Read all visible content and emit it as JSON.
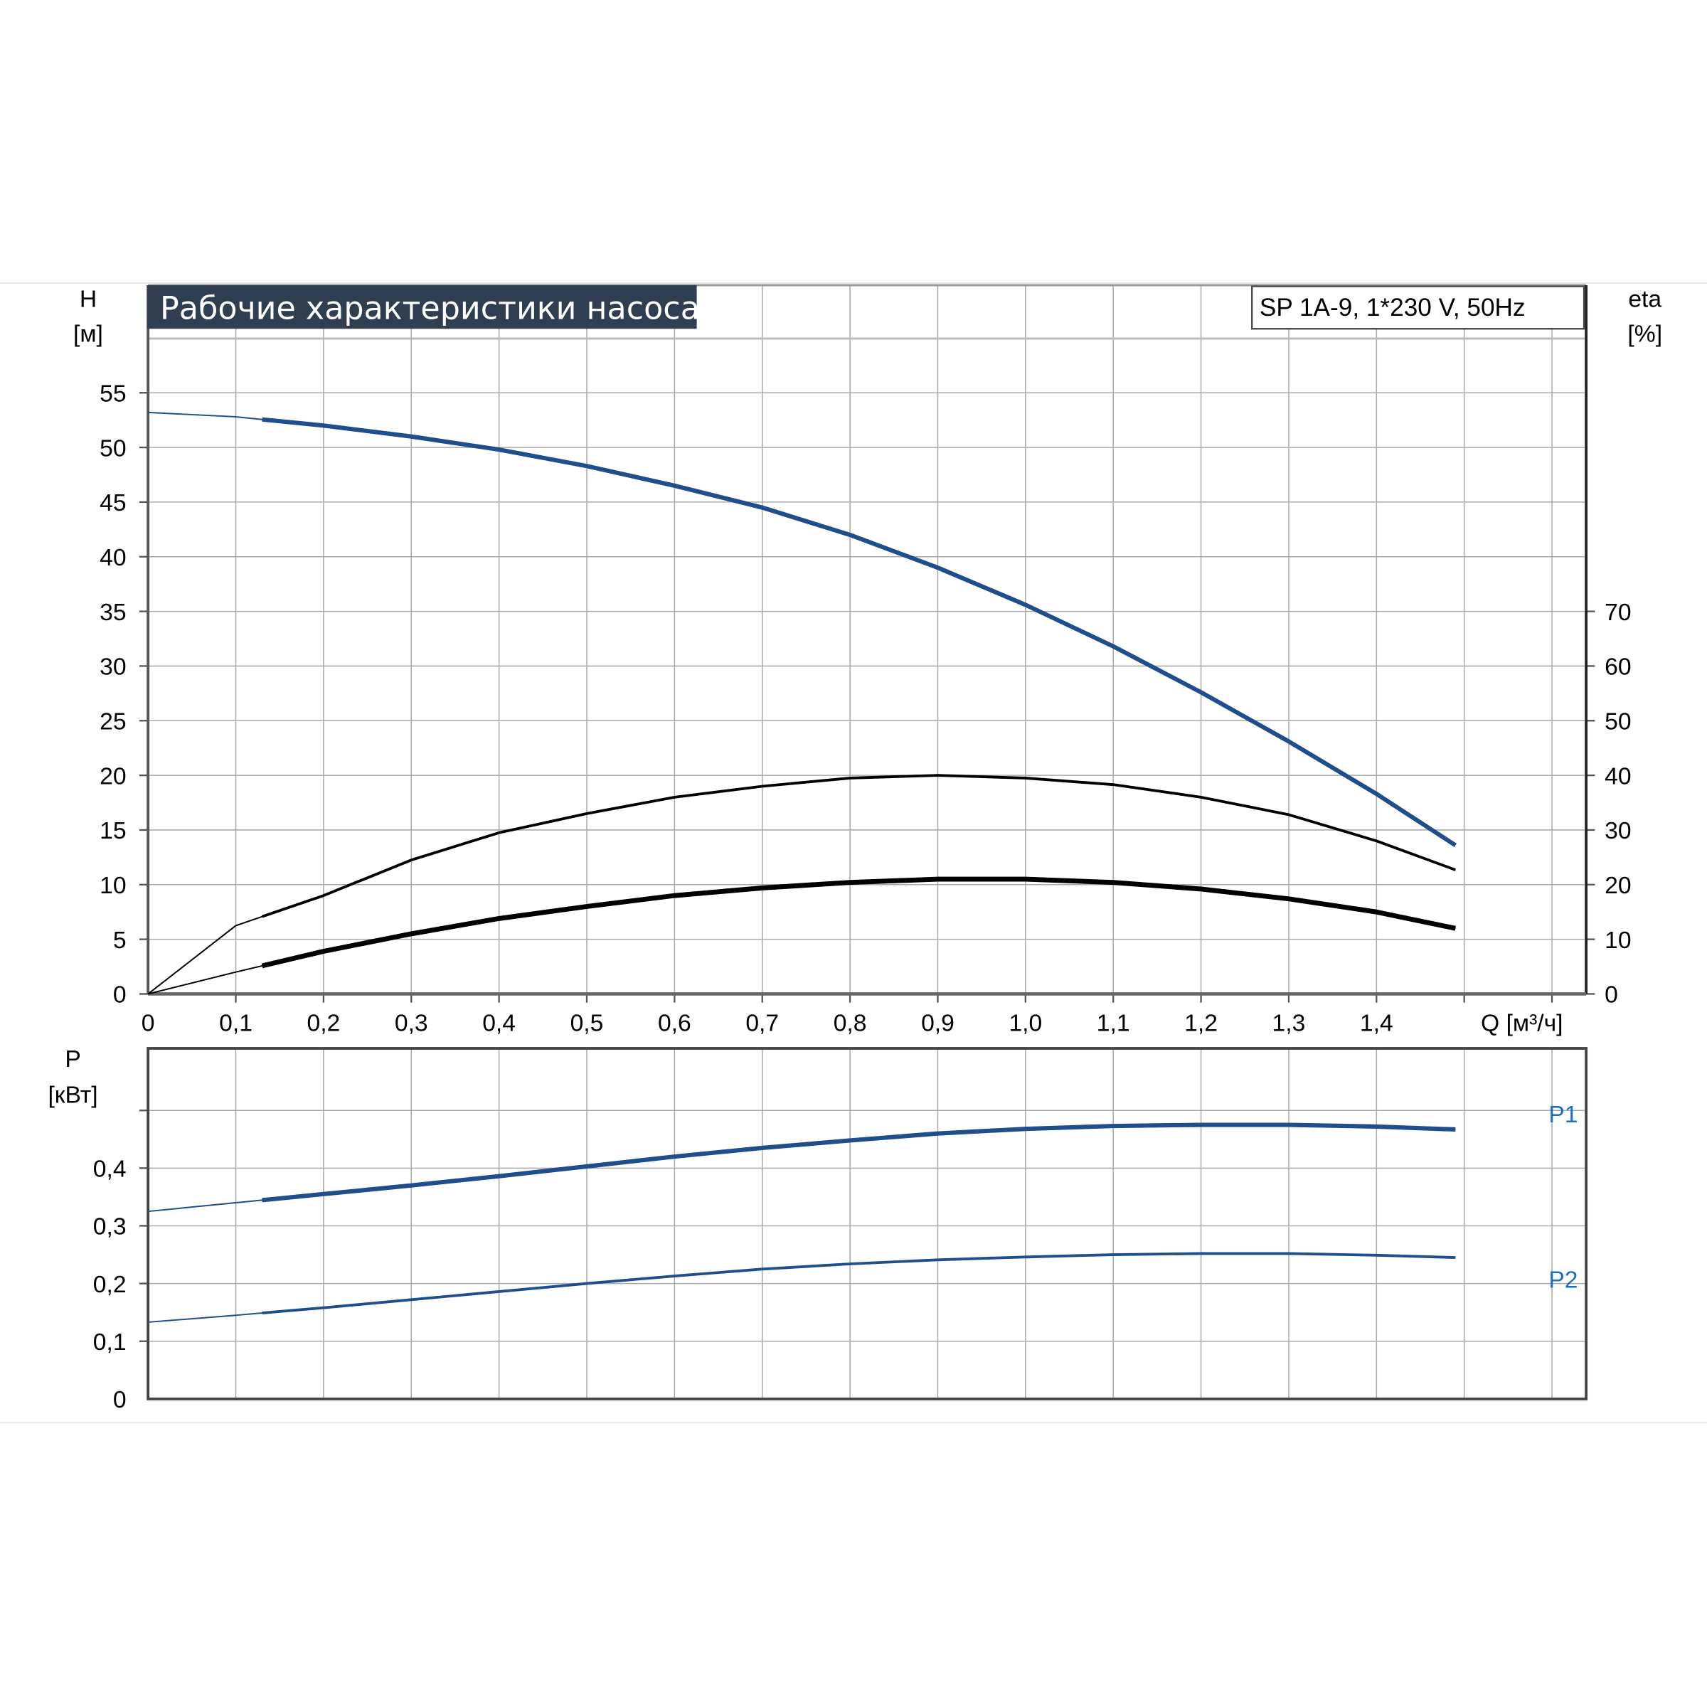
{
  "chart_data": [
    {
      "type": "line",
      "title": "Рабочие характеристики насоса",
      "subtitle": "SP 1A-9, 1*230 V, 50Hz",
      "xlabel": "Q [м³/ч]",
      "ylabel_left": [
        "H",
        "[м]"
      ],
      "ylabel_right": [
        "eta",
        "[%]"
      ],
      "xlim": [
        0,
        1.6
      ],
      "ylim_left": [
        0,
        60
      ],
      "ylim_right": [
        0,
        120
      ],
      "x_ticks": [
        "0",
        "0,1",
        "0,2",
        "0,3",
        "0,4",
        "0,5",
        "0,6",
        "0,7",
        "0,8",
        "0,9",
        "1,0",
        "1,1",
        "1,2",
        "1,3",
        "1,4"
      ],
      "y_ticks_left": [
        "0",
        "5",
        "10",
        "15",
        "20",
        "25",
        "30",
        "35",
        "40",
        "45",
        "50",
        "55"
      ],
      "y_ticks_right": [
        "0",
        "10",
        "20",
        "30",
        "40",
        "50",
        "60",
        "70"
      ],
      "grid": true,
      "x": [
        0,
        0.1,
        0.2,
        0.3,
        0.4,
        0.5,
        0.6,
        0.7,
        0.8,
        0.9,
        1.0,
        1.1,
        1.2,
        1.3,
        1.4,
        1.49
      ],
      "series": [
        {
          "axis": "left",
          "color": "#1f4e8c",
          "values": [
            53.2,
            52.8,
            52,
            51,
            49.8,
            48.3,
            46.5,
            44.5,
            42,
            39,
            35.6,
            31.8,
            27.6,
            23.1,
            18.3,
            13.6
          ]
        },
        {
          "axis": "right",
          "color": "#000000",
          "values": [
            0,
            12.5,
            18,
            24.5,
            29.5,
            33,
            36,
            38,
            39.5,
            40,
            39.5,
            38.3,
            36,
            32.8,
            28,
            22.7
          ]
        },
        {
          "axis": "right",
          "color": "#000000",
          "values": [
            0,
            4,
            7.8,
            11,
            13.8,
            16,
            18,
            19.4,
            20.4,
            21,
            21,
            20.4,
            19.2,
            17.4,
            15,
            12
          ]
        }
      ]
    },
    {
      "type": "line",
      "ylabel": [
        "P",
        "[кВт]"
      ],
      "xlim": [
        0,
        1.6
      ],
      "ylim": [
        0,
        0.6
      ],
      "y_ticks": [
        "0",
        "0,1",
        "0,2",
        "0,3",
        "0,4"
      ],
      "grid": true,
      "x": [
        0,
        0.1,
        0.2,
        0.3,
        0.4,
        0.5,
        0.6,
        0.7,
        0.8,
        0.9,
        1.0,
        1.1,
        1.2,
        1.3,
        1.4,
        1.49
      ],
      "series": [
        {
          "name": "P1",
          "color": "#1f4e8c",
          "values": [
            0.325,
            0.34,
            0.355,
            0.37,
            0.386,
            0.403,
            0.42,
            0.435,
            0.448,
            0.46,
            0.468,
            0.473,
            0.475,
            0.475,
            0.472,
            0.467
          ]
        },
        {
          "name": "P2",
          "color": "#1f4e8c",
          "values": [
            0.133,
            0.145,
            0.158,
            0.172,
            0.186,
            0.2,
            0.213,
            0.225,
            0.234,
            0.241,
            0.246,
            0.25,
            0.252,
            0.252,
            0.249,
            0.245
          ]
        }
      ]
    }
  ]
}
